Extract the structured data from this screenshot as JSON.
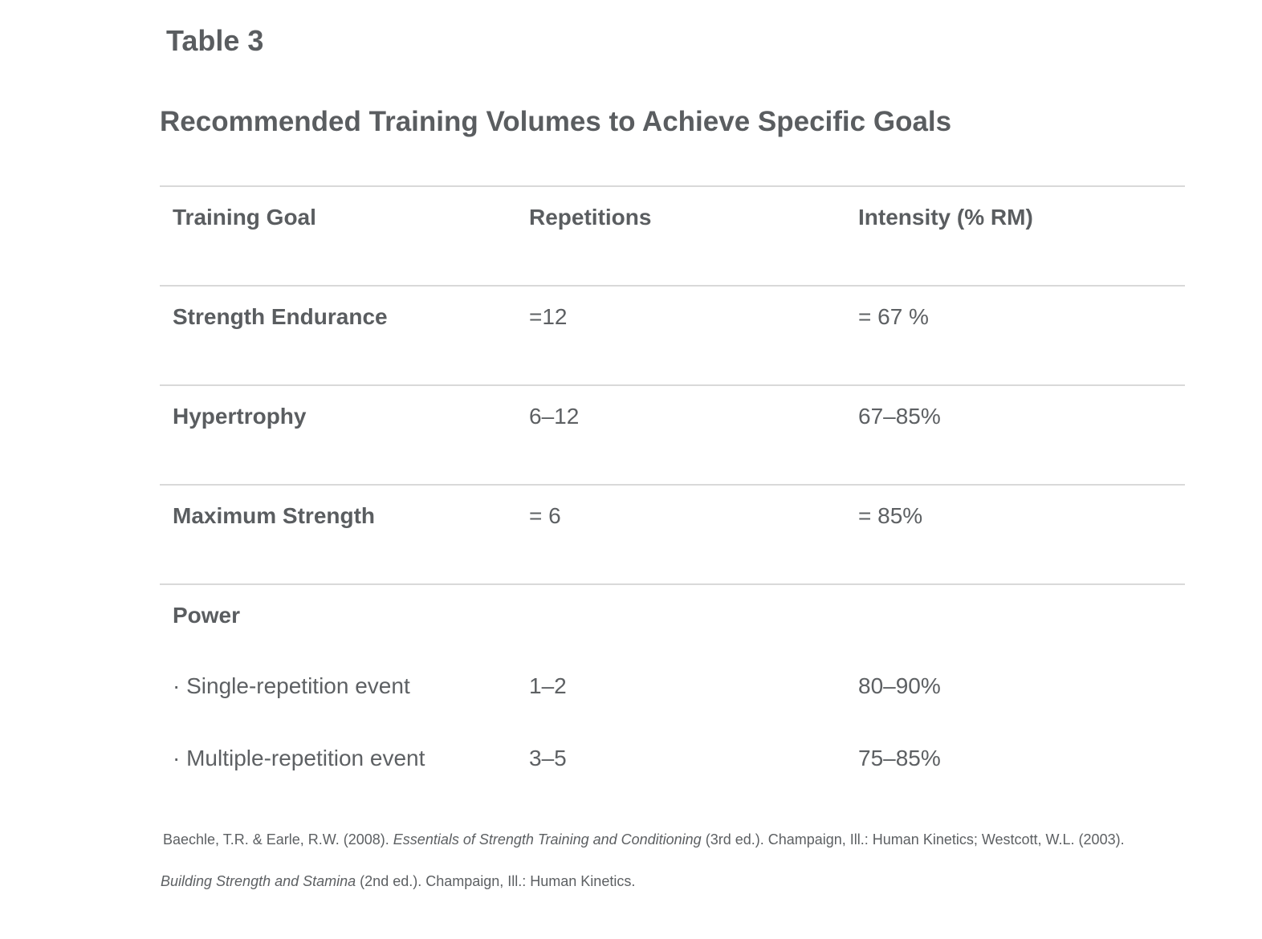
{
  "table_label": "Table 3",
  "table_title": "Recommended Training Volumes to Achieve Specific Goals",
  "columns": [
    "Training Goal",
    "Repetitions",
    "Intensity (% RM)"
  ],
  "rows": [
    {
      "goal": "Strength Endurance",
      "reps": "=12",
      "intensity": "= 67 %"
    },
    {
      "goal": "Hypertrophy",
      "reps": "6–12",
      "intensity": "67–85%"
    },
    {
      "goal": "Maximum Strength",
      "reps": "= 6",
      "intensity": "= 85%"
    }
  ],
  "power": {
    "goal": "Power",
    "subrows": [
      {
        "goal": "· Single-repetition event",
        "reps": "1–2",
        "intensity": "80–90%"
      },
      {
        "goal": "· Multiple-repetition event",
        "reps": "3–5",
        "intensity": "75–85%"
      }
    ]
  },
  "footnote": {
    "line1_pre": "Baechle, T.R. & Earle, R.W. (2008). ",
    "line1_italic": "Essentials of Strength Training and Conditioning",
    "line1_post": " (3rd ed.). Champaign, Ill.: Human Kinetics; Westcott, W.L. (2003).",
    "line2_italic": "Building Strength and Stamina",
    "line2_post": " (2nd ed.). Champaign, Ill.: Human Kinetics."
  }
}
